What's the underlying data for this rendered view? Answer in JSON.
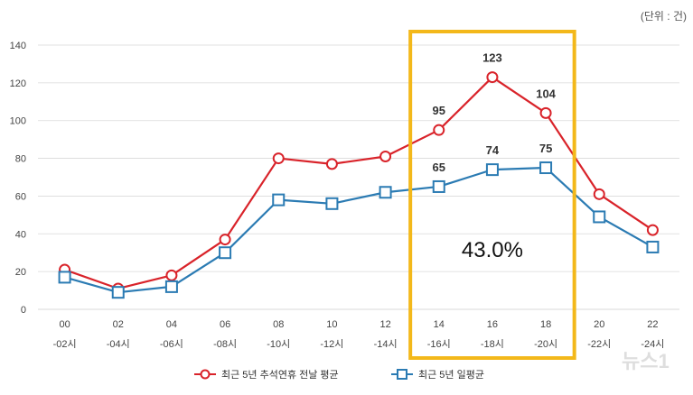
{
  "unit_label": "(단위 : 건)",
  "annotation": "43.0%",
  "watermark": "뉴스1",
  "colors": {
    "series1": "#d9232a",
    "series2": "#2b7bb3",
    "highlight_box": "#f3b81a",
    "grid": "#d9d9d9"
  },
  "chart_data": {
    "type": "line",
    "x": [
      {
        "top": "00",
        "bottom": "-02시"
      },
      {
        "top": "02",
        "bottom": "-04시"
      },
      {
        "top": "04",
        "bottom": "-06시"
      },
      {
        "top": "06",
        "bottom": "-08시"
      },
      {
        "top": "08",
        "bottom": "-10시"
      },
      {
        "top": "10",
        "bottom": "-12시"
      },
      {
        "top": "12",
        "bottom": "-14시"
      },
      {
        "top": "14",
        "bottom": "-16시"
      },
      {
        "top": "16",
        "bottom": "-18시"
      },
      {
        "top": "18",
        "bottom": "-20시"
      },
      {
        "top": "20",
        "bottom": "-22시"
      },
      {
        "top": "22",
        "bottom": "-24시"
      }
    ],
    "yticks": [
      0,
      20,
      40,
      60,
      80,
      100,
      120,
      140
    ],
    "ylim": [
      0,
      140
    ],
    "grid": true,
    "legend_position": "bottom",
    "highlight_range": [
      "14",
      "18"
    ],
    "series": [
      {
        "name": "최근 5년 추석연휴 전날 평균",
        "marker": "circle",
        "values": [
          21,
          11,
          18,
          37,
          80,
          77,
          81,
          95,
          123,
          104,
          61,
          42
        ],
        "labels": [
          "",
          "",
          "",
          "",
          "",
          "",
          "",
          "95",
          "123",
          "104",
          "",
          ""
        ]
      },
      {
        "name": "최근 5년 일평균",
        "marker": "square",
        "values": [
          17,
          9,
          12,
          30,
          58,
          56,
          62,
          65,
          74,
          75,
          49,
          33
        ],
        "labels": [
          "",
          "",
          "",
          "",
          "",
          "",
          "",
          "65",
          "74",
          "75",
          "",
          ""
        ]
      }
    ]
  }
}
